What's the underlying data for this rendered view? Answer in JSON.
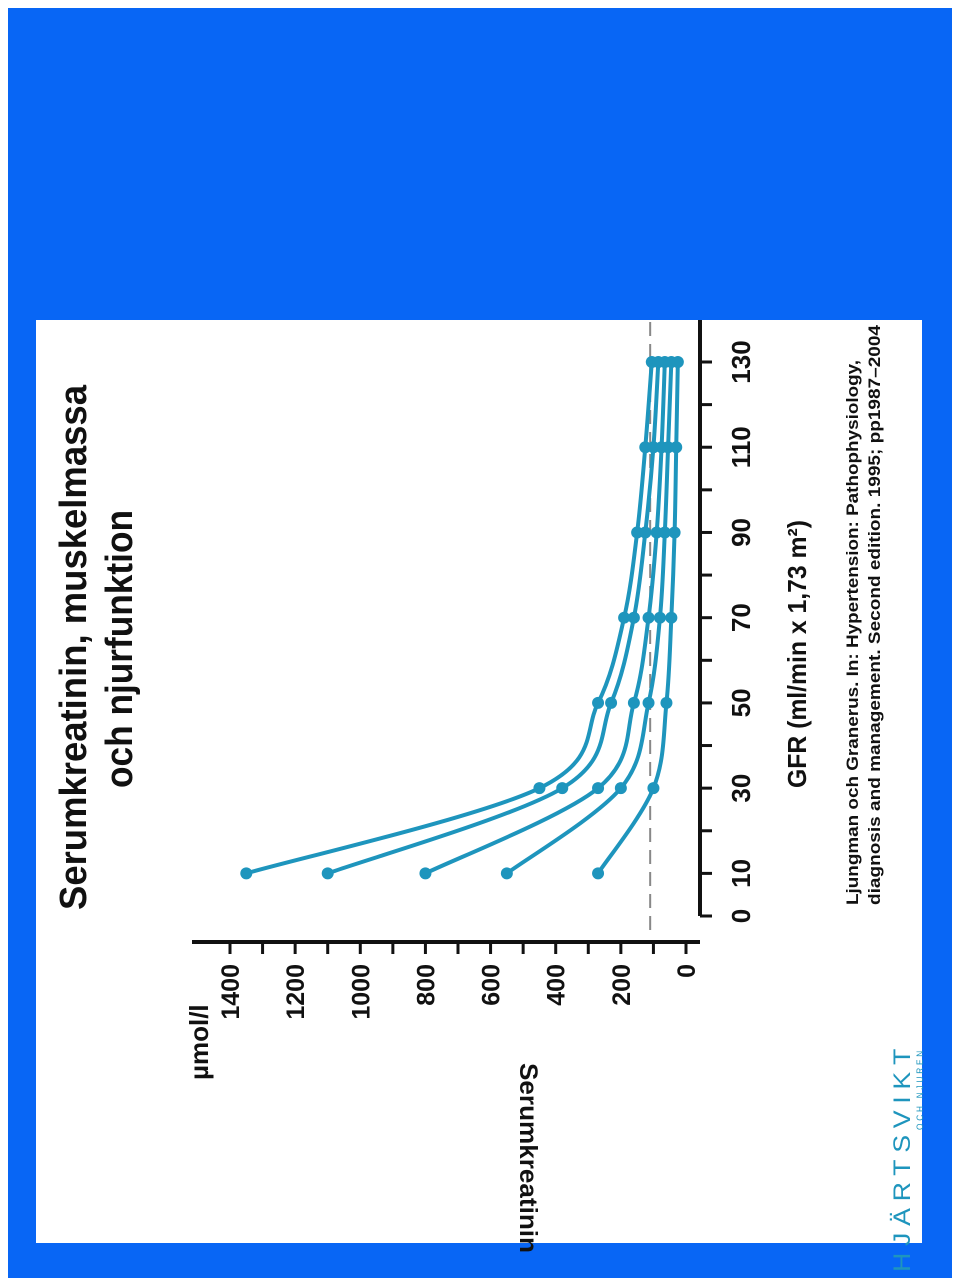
{
  "title_line1": "Serumkreatinin, muskelmassa",
  "title_line2": "och njurfunktion",
  "citation_line1": "Ljungman och Granerus. In: Hypertension: Pathophysiology,",
  "citation_line2": "diagnosis and management. Second edition. 1995; pp1987–2004",
  "brand_name": "HJÄRTSVIKT",
  "brand_sub": "OCH NJUREN",
  "colors": {
    "frame": "#0866f5",
    "series": "#1e95bd",
    "axis": "#111111",
    "reference": "#888888"
  },
  "chart_data": {
    "type": "line",
    "orientation": "rotated-90-ccw",
    "xlabel": "GFR (ml/min x 1,73 m²)",
    "ylabel": "Serumkreatinin",
    "yunit": "µmol/l",
    "x_ticks": [
      0,
      10,
      30,
      50,
      70,
      90,
      110,
      130
    ],
    "y_ticks": [
      0,
      200,
      400,
      600,
      800,
      1000,
      1200,
      1400
    ],
    "xlim": [
      0,
      135
    ],
    "ylim": [
      0,
      1450
    ],
    "reference_line_y": 110,
    "x": [
      10,
      30,
      50,
      70,
      90,
      110,
      130
    ],
    "series": [
      {
        "values": [
          1350,
          450,
          270,
          190,
          150,
          125,
          105
        ]
      },
      {
        "values": [
          1100,
          380,
          230,
          160,
          125,
          100,
          85
        ]
      },
      {
        "values": [
          800,
          270,
          160,
          115,
          90,
          75,
          65
        ]
      },
      {
        "values": [
          550,
          200,
          115,
          80,
          65,
          55,
          45
        ]
      },
      {
        "values": [
          270,
          100,
          60,
          45,
          35,
          30,
          25
        ]
      }
    ]
  }
}
